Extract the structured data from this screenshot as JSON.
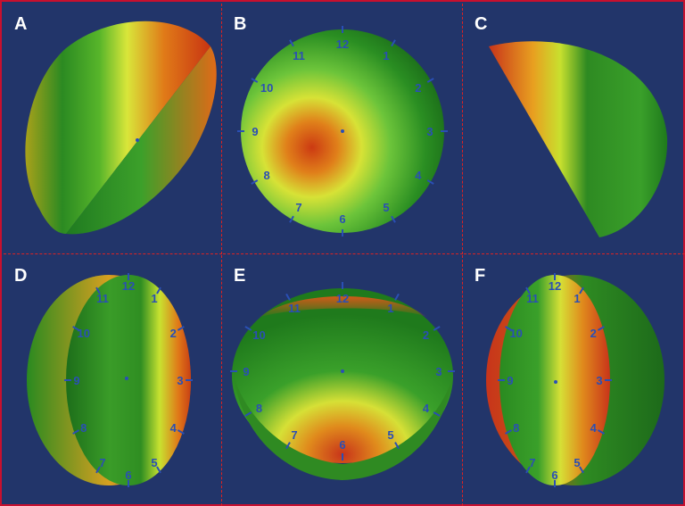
{
  "panels": [
    {
      "id": "A",
      "label": "A"
    },
    {
      "id": "B",
      "label": "B"
    },
    {
      "id": "C",
      "label": "C"
    },
    {
      "id": "D",
      "label": "D"
    },
    {
      "id": "E",
      "label": "E"
    },
    {
      "id": "F",
      "label": "F"
    }
  ],
  "clock_numbers": [
    "12",
    "1",
    "2",
    "3",
    "4",
    "5",
    "6",
    "7",
    "8",
    "9",
    "10",
    "11"
  ],
  "colors": {
    "background": "#22356a",
    "border": "#c8102e",
    "low": "#0f6a1c",
    "mid": "#c8e62a",
    "high": "#d23a10",
    "marker": "#2a4fb5"
  }
}
